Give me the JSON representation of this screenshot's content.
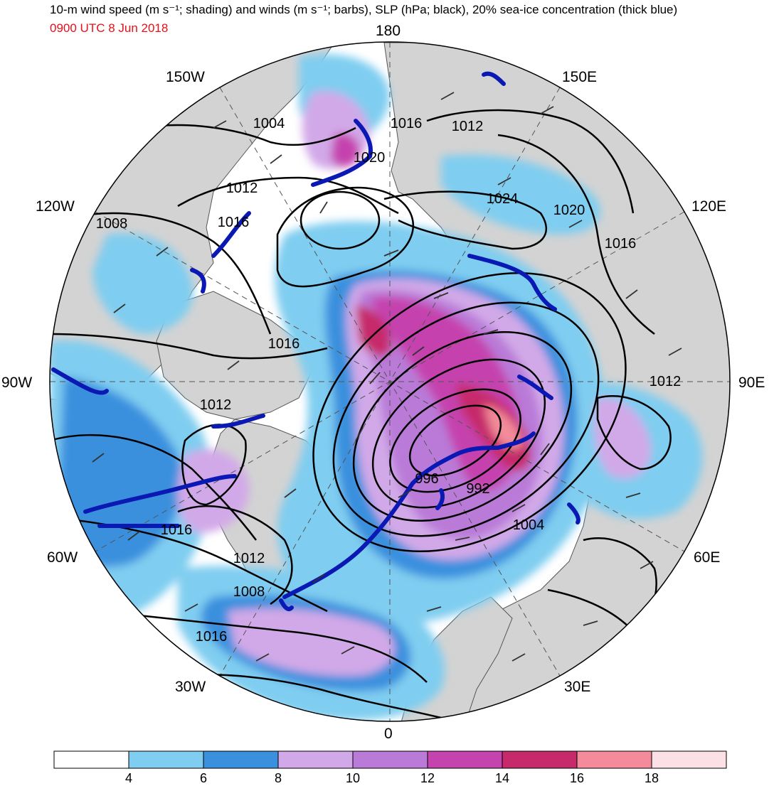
{
  "title": "10-m wind speed (m s⁻¹; shading) and winds (m s⁻¹; barbs), SLP (hPa; black), 20% sea-ice concentration (thick blue)",
  "subtitle": "0900 UTC 8 Jun 2018",
  "colors": {
    "subtitle": "#e8101a",
    "land": "#d3d3d3",
    "ice_edge": "#0a18b4",
    "slp": "#000000"
  },
  "longitude_labels": {
    "lon_180": "180",
    "lon_150w": "150W",
    "lon_150e": "150E",
    "lon_120w": "120W",
    "lon_120e": "120E",
    "lon_90w": "90W",
    "lon_90e": "90E",
    "lon_60w": "60W",
    "lon_60e": "60E",
    "lon_30w": "30W",
    "lon_30e": "30E",
    "lon_0": "0"
  },
  "slp_labels": [
    "1004",
    "1016",
    "1012",
    "1020",
    "1024",
    "1020",
    "1016",
    "1012",
    "1008",
    "1016",
    "1016",
    "1012",
    "1012",
    "996",
    "992",
    "1004",
    "1016",
    "1012",
    "1008",
    "1016"
  ],
  "colorbar": {
    "ticks": [
      "4",
      "6",
      "8",
      "10",
      "12",
      "14",
      "16",
      "18"
    ],
    "colors": [
      "#ffffff",
      "#7fcdf0",
      "#3b90de",
      "#d2a9e8",
      "#b97ad8",
      "#c543ae",
      "#c62a6a",
      "#f38b9a",
      "#fbe0e5"
    ]
  }
}
